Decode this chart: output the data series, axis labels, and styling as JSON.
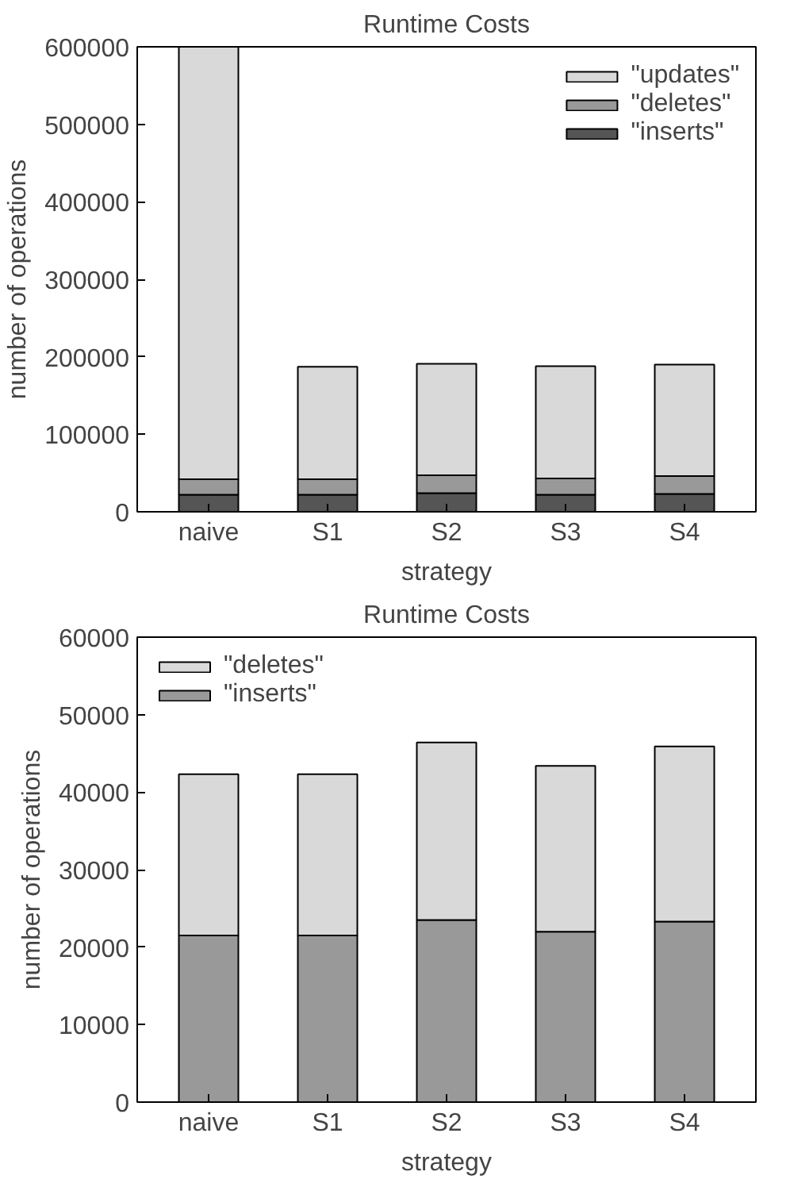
{
  "chart_data": [
    {
      "type": "bar",
      "title": "Runtime Costs",
      "xlabel": "strategy",
      "ylabel": "number of operations",
      "categories": [
        "naive",
        "S1",
        "S2",
        "S3",
        "S4"
      ],
      "stacked": true,
      "series": [
        {
          "name": "\"inserts\"",
          "color": "#555555",
          "values": [
            22000,
            22000,
            24000,
            22000,
            23000
          ]
        },
        {
          "name": "\"deletes\"",
          "color": "#999999",
          "values": [
            20000,
            20000,
            23000,
            21000,
            23000
          ]
        },
        {
          "name": "\"updates\"",
          "color": "#d9d9d9",
          "values": [
            558000,
            145000,
            144000,
            145000,
            144000
          ]
        }
      ],
      "ylim": [
        0,
        600000
      ],
      "yticks": [
        0,
        100000,
        200000,
        300000,
        400000,
        500000,
        600000
      ],
      "grid": false,
      "legend": "top right"
    },
    {
      "type": "bar",
      "title": "Runtime Costs",
      "xlabel": "strategy",
      "ylabel": "number of operations",
      "categories": [
        "naive",
        "S1",
        "S2",
        "S3",
        "S4"
      ],
      "stacked": true,
      "series": [
        {
          "name": "\"inserts\"",
          "color": "#999999",
          "values": [
            21500,
            21500,
            23500,
            22000,
            23300
          ]
        },
        {
          "name": "\"deletes\"",
          "color": "#d9d9d9",
          "values": [
            20800,
            20800,
            22900,
            21400,
            22600
          ]
        }
      ],
      "ylim": [
        0,
        60000
      ],
      "yticks": [
        0,
        10000,
        20000,
        30000,
        40000,
        50000,
        60000
      ],
      "grid": false,
      "legend": "top left"
    }
  ]
}
